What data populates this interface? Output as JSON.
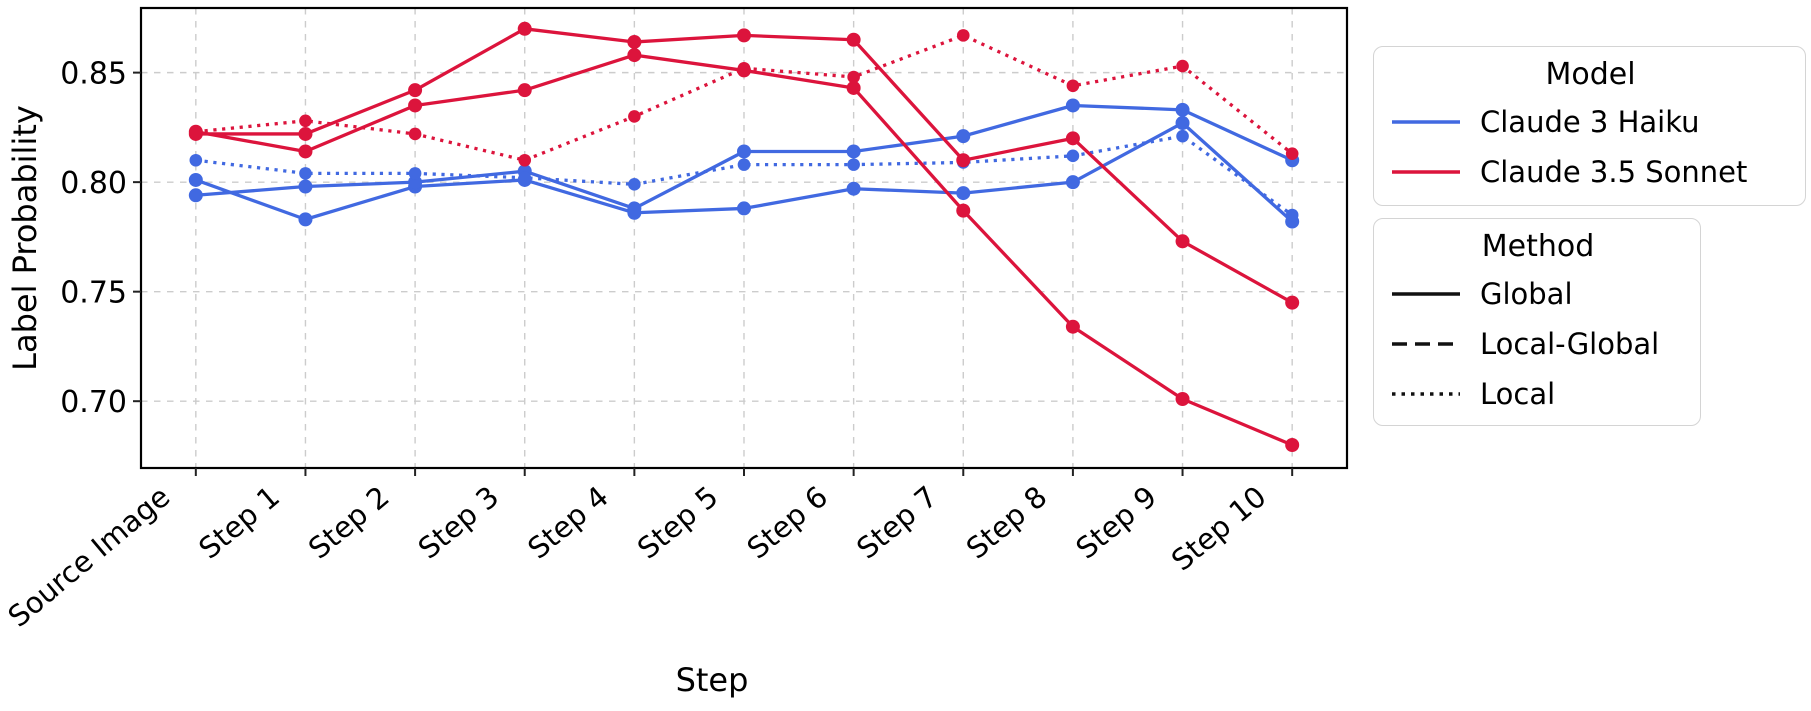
{
  "chart_data": {
    "type": "line",
    "title": "",
    "xlabel": "Step",
    "ylabel": "Label Probability",
    "categories": [
      "Source Image",
      "Step 1",
      "Step 2",
      "Step 3",
      "Step 4",
      "Step 5",
      "Step 6",
      "Step 7",
      "Step 8",
      "Step 9",
      "Step 10"
    ],
    "ytick_values": [
      0.7,
      0.75,
      0.8,
      0.85
    ],
    "ytick_labels": [
      "0.70",
      "0.75",
      "0.80",
      "0.85"
    ],
    "ylim": [
      0.6695,
      0.8795
    ],
    "grid": "dashed light-gray, vertical at each step and horizontal at each y tick",
    "legend_position": "outside right",
    "series": [
      {
        "name": "Claude 3 Haiku — Local-Global",
        "model": "Claude 3 Haiku",
        "method": "Local-Global",
        "color": "#4169E1",
        "line_style": "solid-looking (dashed in legend)",
        "marker": "circle",
        "values": [
          0.801,
          0.783,
          0.798,
          0.801,
          0.786,
          0.788,
          0.797,
          0.795,
          0.8,
          0.827,
          0.782
        ]
      },
      {
        "name": "Claude 3 Haiku — Global",
        "model": "Claude 3 Haiku",
        "method": "Global",
        "color": "#4169E1",
        "line_style": "solid",
        "marker": "circle",
        "values": [
          0.794,
          0.798,
          0.8,
          0.805,
          0.788,
          0.814,
          0.814,
          0.821,
          0.835,
          0.833,
          0.81
        ]
      },
      {
        "name": "Claude 3 Haiku — Local",
        "model": "Claude 3 Haiku",
        "method": "Local",
        "color": "#4169E1",
        "line_style": "dotted",
        "marker": "circle",
        "values": [
          0.81,
          0.804,
          0.804,
          0.802,
          0.799,
          0.808,
          0.808,
          0.809,
          0.812,
          0.821,
          0.785
        ]
      },
      {
        "name": "Claude 3.5 Sonnet — Local-Global",
        "model": "Claude 3.5 Sonnet",
        "method": "Local-Global",
        "color": "#DC143C",
        "line_style": "solid-looking (dashed in legend)",
        "marker": "circle",
        "values": [
          0.823,
          0.814,
          0.835,
          0.842,
          0.858,
          0.851,
          0.843,
          0.787,
          0.734,
          0.701,
          0.68
        ]
      },
      {
        "name": "Claude 3.5 Sonnet — Global",
        "model": "Claude 3.5 Sonnet",
        "method": "Global",
        "color": "#DC143C",
        "line_style": "solid",
        "marker": "circle",
        "values": [
          0.822,
          0.822,
          0.842,
          0.87,
          0.864,
          0.867,
          0.865,
          0.81,
          0.82,
          0.773,
          0.745
        ]
      },
      {
        "name": "Claude 3.5 Sonnet — Local",
        "model": "Claude 3.5 Sonnet",
        "method": "Local",
        "color": "#DC143C",
        "line_style": "dotted",
        "marker": "circle",
        "values": [
          0.823,
          0.828,
          0.822,
          0.81,
          0.83,
          0.852,
          0.848,
          0.867,
          0.844,
          0.853,
          0.813
        ]
      }
    ]
  },
  "legend": {
    "model": {
      "title": "Model",
      "items": [
        {
          "label": "Claude 3 Haiku",
          "color": "#4169E1"
        },
        {
          "label": "Claude 3.5 Sonnet",
          "color": "#DC143C"
        }
      ]
    },
    "method": {
      "title": "Method",
      "items": [
        {
          "label": "Global",
          "style": "solid"
        },
        {
          "label": "Local-Global",
          "style": "dashed"
        },
        {
          "label": "Local",
          "style": "dotted"
        }
      ]
    }
  },
  "colors": {
    "haiku_blue": "#4169E1",
    "sonnet_red": "#DC143C",
    "gridline": "#cccccc",
    "spine": "#000000",
    "legend_border": "#d4d4d4"
  }
}
